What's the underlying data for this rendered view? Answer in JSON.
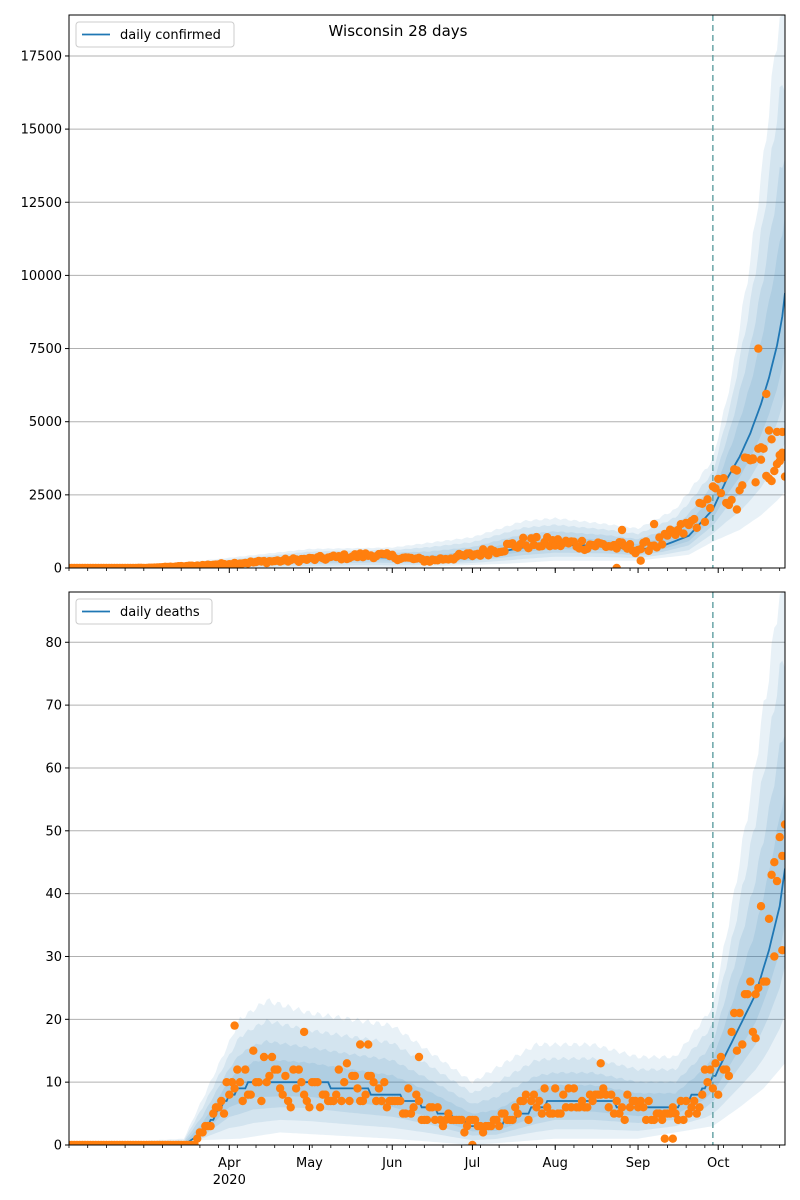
{
  "title": "Wisconsin 28 days",
  "colors": {
    "line": "#1f77b4",
    "points": "#ff7f0e",
    "band": "#1f77b4",
    "grid": "#b0b0b0",
    "forecast_marker": "#5f9ea0"
  },
  "chart_data": [
    {
      "type": "line",
      "name": "confirmed-panel",
      "legend": "daily confirmed",
      "legend_position": "top-left",
      "grid": "y",
      "ylim": [
        0,
        18900
      ],
      "yticks": [
        0,
        2500,
        5000,
        7500,
        10000,
        12500,
        15000,
        17500
      ],
      "forecast_start": "2020-09-29",
      "x_axis": {
        "range": [
          "2020-02-01",
          "2020-10-26"
        ],
        "major_ticks": [
          {
            "date": "2020-04-01",
            "label": "Apr",
            "sublabel": "2020"
          },
          {
            "date": "2020-05-01",
            "label": "May"
          },
          {
            "date": "2020-06-01",
            "label": "Jun"
          },
          {
            "date": "2020-07-01",
            "label": "Jul"
          },
          {
            "date": "2020-08-01",
            "label": "Aug"
          },
          {
            "date": "2020-09-01",
            "label": "Sep"
          },
          {
            "date": "2020-10-01",
            "label": "Oct"
          }
        ]
      },
      "fit_knots": [
        [
          "2020-02-01",
          0
        ],
        [
          "2020-03-01",
          0
        ],
        [
          "2020-03-15",
          20
        ],
        [
          "2020-04-01",
          100
        ],
        [
          "2020-05-01",
          280
        ],
        [
          "2020-05-25",
          380
        ],
        [
          "2020-06-15",
          270
        ],
        [
          "2020-07-01",
          380
        ],
        [
          "2020-07-20",
          700
        ],
        [
          "2020-08-01",
          800
        ],
        [
          "2020-08-20",
          750
        ],
        [
          "2020-09-01",
          620
        ],
        [
          "2020-09-10",
          750
        ],
        [
          "2020-09-20",
          1100
        ],
        [
          "2020-09-29",
          2000
        ],
        [
          "2020-10-04",
          3000
        ],
        [
          "2020-10-09",
          3800
        ],
        [
          "2020-10-13",
          4600
        ],
        [
          "2020-10-17",
          5600
        ],
        [
          "2020-10-20",
          6500
        ],
        [
          "2020-10-23",
          7600
        ],
        [
          "2020-10-25",
          8600
        ],
        [
          "2020-10-26",
          9400
        ]
      ],
      "band_upper_knots": [
        [
          "2020-02-01",
          0
        ],
        [
          "2020-03-01",
          50
        ],
        [
          "2020-04-01",
          350
        ],
        [
          "2020-05-01",
          650
        ],
        [
          "2020-06-01",
          700
        ],
        [
          "2020-07-01",
          1050
        ],
        [
          "2020-07-20",
          1600
        ],
        [
          "2020-08-01",
          1700
        ],
        [
          "2020-08-20",
          1500
        ],
        [
          "2020-09-01",
          1350
        ],
        [
          "2020-09-15",
          2000
        ],
        [
          "2020-09-29",
          3700
        ],
        [
          "2020-10-06",
          6500
        ],
        [
          "2020-10-13",
          10500
        ],
        [
          "2020-10-18",
          14000
        ],
        [
          "2020-10-21",
          16500
        ],
        [
          "2020-10-24",
          18900
        ],
        [
          "2020-10-26",
          18900
        ]
      ],
      "band_lower_knots": [
        [
          "2020-02-01",
          0
        ],
        [
          "2020-06-01",
          0
        ],
        [
          "2020-07-15",
          150
        ],
        [
          "2020-08-01",
          250
        ],
        [
          "2020-09-01",
          250
        ],
        [
          "2020-09-20",
          450
        ],
        [
          "2020-09-29",
          900
        ],
        [
          "2020-10-09",
          1300
        ],
        [
          "2020-10-17",
          1800
        ],
        [
          "2020-10-23",
          2300
        ],
        [
          "2020-10-26",
          2600
        ]
      ],
      "observed_knots": [
        [
          "2020-02-01",
          0
        ],
        [
          "2020-03-01",
          5
        ],
        [
          "2020-03-20",
          80
        ],
        [
          "2020-04-01",
          150
        ],
        [
          "2020-05-01",
          300
        ],
        [
          "2020-05-25",
          450
        ],
        [
          "2020-06-15",
          250
        ],
        [
          "2020-07-01",
          450
        ],
        [
          "2020-07-20",
          850
        ],
        [
          "2020-08-01",
          850
        ],
        [
          "2020-08-20",
          780
        ],
        [
          "2020-09-01",
          650
        ],
        [
          "2020-09-10",
          900
        ],
        [
          "2020-09-20",
          1400
        ],
        [
          "2020-09-29",
          2400
        ],
        [
          "2020-10-06",
          2700
        ],
        [
          "2020-10-12",
          3300
        ],
        [
          "2020-10-26",
          4000
        ]
      ],
      "observed_noise": 0.25,
      "observed_outliers": [
        [
          "2020-08-24",
          0
        ],
        [
          "2020-09-02",
          250
        ],
        [
          "2020-09-07",
          1500
        ],
        [
          "2020-08-26",
          1300
        ],
        [
          "2020-10-08",
          2000
        ],
        [
          "2020-10-16",
          7500
        ],
        [
          "2020-10-19",
          5950
        ],
        [
          "2020-10-20",
          4700
        ],
        [
          "2020-10-21",
          4400
        ],
        [
          "2020-10-23",
          4650
        ],
        [
          "2020-10-24",
          3650
        ],
        [
          "2020-10-25",
          4650
        ],
        [
          "2020-10-26",
          3800
        ],
        [
          "2020-10-14",
          3700
        ],
        [
          "2020-10-17",
          3700
        ]
      ]
    },
    {
      "type": "line",
      "name": "deaths-panel",
      "legend": "daily deaths",
      "legend_position": "top-left",
      "grid": "y",
      "ylim": [
        0,
        88
      ],
      "yticks": [
        0,
        10,
        20,
        30,
        40,
        50,
        60,
        70,
        80
      ],
      "forecast_start": "2020-09-29",
      "x_axis": {
        "range": [
          "2020-02-01",
          "2020-10-26"
        ],
        "major_ticks": [
          {
            "date": "2020-04-01",
            "label": "Apr",
            "sublabel": "2020"
          },
          {
            "date": "2020-05-01",
            "label": "May"
          },
          {
            "date": "2020-06-01",
            "label": "Jun"
          },
          {
            "date": "2020-07-01",
            "label": "Jul"
          },
          {
            "date": "2020-08-01",
            "label": "Aug"
          },
          {
            "date": "2020-09-01",
            "label": "Sep"
          },
          {
            "date": "2020-10-01",
            "label": "Oct"
          }
        ]
      },
      "fit_knots": [
        [
          "2020-02-01",
          0
        ],
        [
          "2020-03-15",
          0
        ],
        [
          "2020-03-22",
          2
        ],
        [
          "2020-04-01",
          8
        ],
        [
          "2020-04-10",
          10
        ],
        [
          "2020-05-01",
          10
        ],
        [
          "2020-05-15",
          9
        ],
        [
          "2020-06-01",
          8
        ],
        [
          "2020-06-15",
          6
        ],
        [
          "2020-07-01",
          3
        ],
        [
          "2020-07-10",
          3
        ],
        [
          "2020-07-25",
          6
        ],
        [
          "2020-08-01",
          7
        ],
        [
          "2020-08-15",
          7
        ],
        [
          "2020-09-01",
          6
        ],
        [
          "2020-09-15",
          6
        ],
        [
          "2020-09-26",
          9
        ],
        [
          "2020-10-01",
          12
        ],
        [
          "2020-10-08",
          18
        ],
        [
          "2020-10-15",
          24
        ],
        [
          "2020-10-20",
          31
        ],
        [
          "2020-10-24",
          38
        ],
        [
          "2020-10-26",
          44
        ]
      ],
      "band_upper_knots": [
        [
          "2020-02-01",
          0
        ],
        [
          "2020-03-15",
          1
        ],
        [
          "2020-04-05",
          20
        ],
        [
          "2020-04-15",
          23
        ],
        [
          "2020-05-01",
          21
        ],
        [
          "2020-06-01",
          19
        ],
        [
          "2020-07-01",
          10
        ],
        [
          "2020-07-25",
          16
        ],
        [
          "2020-08-15",
          16
        ],
        [
          "2020-09-01",
          14
        ],
        [
          "2020-09-15",
          14
        ],
        [
          "2020-09-29",
          22
        ],
        [
          "2020-10-07",
          40
        ],
        [
          "2020-10-14",
          58
        ],
        [
          "2020-10-20",
          75
        ],
        [
          "2020-10-24",
          88
        ],
        [
          "2020-10-26",
          88
        ]
      ],
      "band_lower_knots": [
        [
          "2020-02-01",
          0
        ],
        [
          "2020-04-05",
          1
        ],
        [
          "2020-04-20",
          2
        ],
        [
          "2020-06-01",
          1
        ],
        [
          "2020-07-01",
          0
        ],
        [
          "2020-08-01",
          1
        ],
        [
          "2020-09-01",
          1
        ],
        [
          "2020-09-29",
          3
        ],
        [
          "2020-10-09",
          6
        ],
        [
          "2020-10-18",
          9
        ],
        [
          "2020-10-26",
          13
        ]
      ],
      "observed_knots": [
        [
          "2020-02-01",
          0
        ],
        [
          "2020-03-18",
          0
        ],
        [
          "2020-03-25",
          3
        ],
        [
          "2020-04-01",
          9
        ],
        [
          "2020-04-10",
          11
        ],
        [
          "2020-05-01",
          9
        ],
        [
          "2020-05-20",
          10
        ],
        [
          "2020-06-01",
          8
        ],
        [
          "2020-06-15",
          5
        ],
        [
          "2020-07-01",
          3
        ],
        [
          "2020-07-15",
          4
        ],
        [
          "2020-07-25",
          7
        ],
        [
          "2020-08-15",
          7
        ],
        [
          "2020-09-01",
          6
        ],
        [
          "2020-09-15",
          5
        ],
        [
          "2020-09-29",
          10
        ],
        [
          "2020-10-05",
          13
        ],
        [
          "2020-10-12",
          24
        ],
        [
          "2020-10-19",
          33
        ],
        [
          "2020-10-26",
          42
        ]
      ],
      "observed_noise": 0.35,
      "observed_outliers": [
        [
          "2020-04-03",
          19
        ],
        [
          "2020-04-29",
          18
        ],
        [
          "2020-05-20",
          16
        ],
        [
          "2020-05-23",
          16
        ],
        [
          "2020-06-11",
          14
        ],
        [
          "2020-07-01",
          0
        ],
        [
          "2020-08-18",
          13
        ],
        [
          "2020-10-25",
          46
        ],
        [
          "2020-10-15",
          17
        ],
        [
          "2020-10-22",
          30
        ],
        [
          "2020-09-11",
          1
        ],
        [
          "2020-09-14",
          1
        ]
      ]
    }
  ]
}
